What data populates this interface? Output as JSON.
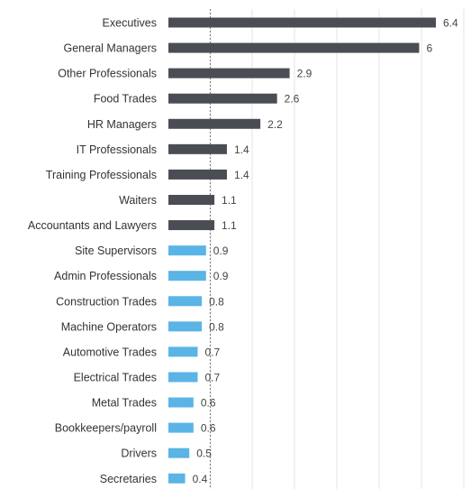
{
  "chart_data": {
    "type": "bar",
    "orientation": "horizontal",
    "title": "",
    "xlabel": "",
    "ylabel": "",
    "categories": [
      "Executives",
      "General Managers",
      "Other Professionals",
      "Food Trades",
      "HR Managers",
      "IT Professionals",
      "Training Professionals",
      "Waiters",
      "Accountants and Lawyers",
      "Site Supervisors",
      "Admin Professionals",
      "Construction Trades",
      "Machine Operators",
      "Automotive Trades",
      "Electrical Trades",
      "Metal Trades",
      "Bookkeepers/payroll",
      "Drivers",
      "Secretaries"
    ],
    "values": [
      6.4,
      6,
      2.9,
      2.6,
      2.2,
      1.4,
      1.4,
      1.1,
      1.1,
      0.9,
      0.9,
      0.8,
      0.8,
      0.7,
      0.7,
      0.6,
      0.6,
      0.5,
      0.4
    ],
    "value_labels": [
      "6.4",
      "6",
      "2.9",
      "2.6",
      "2.2",
      "1.4",
      "1.4",
      "1.1",
      "1.1",
      "0.9",
      "0.9",
      "0.8",
      "0.8",
      "0.7",
      "0.7",
      "0.6",
      "0.6",
      "0.5",
      "0.4"
    ],
    "xlim": [
      0,
      7
    ],
    "reference_line": 1,
    "grid": true,
    "colors": {
      "above_reference": "#4a4d54",
      "below_reference": "#5ab4e5",
      "grid": "#e6e6e6",
      "reference_line": "#777777"
    }
  }
}
